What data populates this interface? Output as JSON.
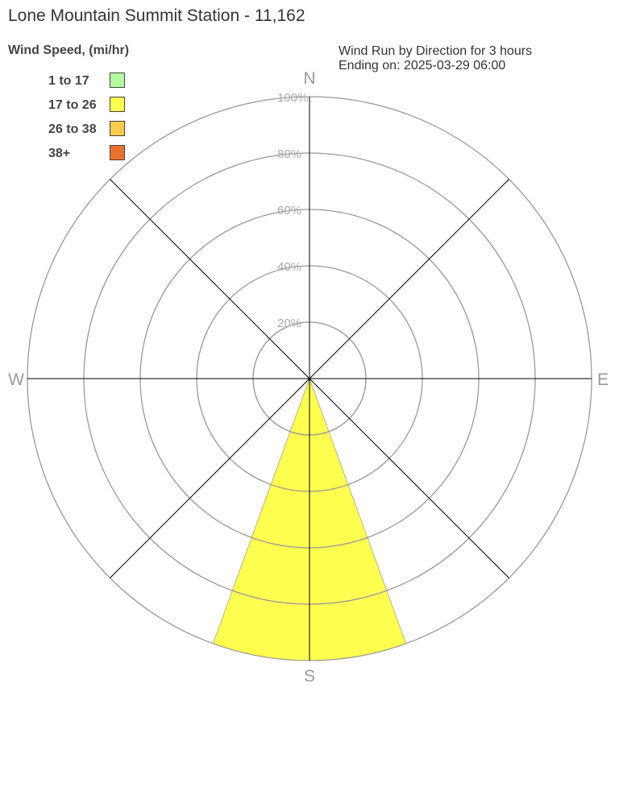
{
  "chart_data": {
    "type": "wind-rose",
    "title": "Lone Mountain Summit Station - 11,162",
    "subtitle_line1": "Wind Run by Direction for 3 hours",
    "subtitle_line2": "Ending on: 2025-03-29 06:00",
    "legend_title": "Wind Speed, (mi/hr)",
    "legend": [
      {
        "label": "1 to 17",
        "color": "#b3ffa0"
      },
      {
        "label": "17 to 26",
        "color": "#ffff4f"
      },
      {
        "label": "26 to 38",
        "color": "#f8cc48"
      },
      {
        "label": "38+",
        "color": "#ee6e2e"
      }
    ],
    "directions": [
      "N",
      "E",
      "S",
      "W"
    ],
    "rings": [
      "20%",
      "40%",
      "60%",
      "80%",
      "100%"
    ],
    "rlim": [
      0,
      100
    ],
    "series": [
      {
        "direction": "S",
        "bin": "17 to 26",
        "value": 100
      }
    ]
  }
}
